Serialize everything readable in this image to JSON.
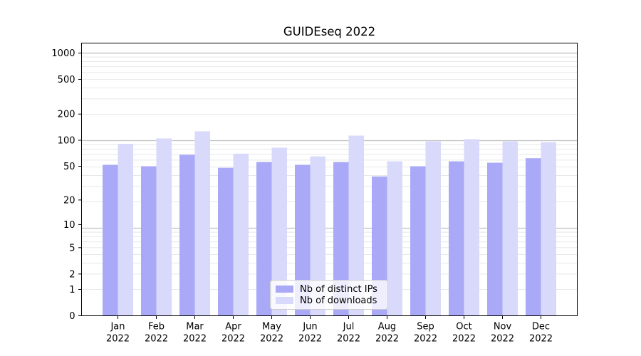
{
  "chart_data": {
    "type": "bar",
    "title": "GUIDEseq 2022",
    "categories": [
      "Jan",
      "Feb",
      "Mar",
      "Apr",
      "May",
      "Jun",
      "Jul",
      "Aug",
      "Sep",
      "Oct",
      "Nov",
      "Dec"
    ],
    "category_year": "2022",
    "series": [
      {
        "name": "Nb of distinct IPs",
        "color": "#a9a9f7",
        "values": [
          52,
          50,
          68,
          48,
          56,
          52,
          56,
          38,
          50,
          57,
          55,
          62
        ]
      },
      {
        "name": "Nb of downloads",
        "color": "#d9d9fb",
        "values": [
          91,
          105,
          127,
          70,
          82,
          65,
          113,
          57,
          97,
          103,
          97,
          95
        ]
      }
    ],
    "xlabel": "",
    "ylabel": "",
    "yscale": "log1p",
    "ylim": [
      0,
      1300
    ],
    "yticks": [
      0,
      1,
      2,
      5,
      10,
      20,
      50,
      100,
      200,
      500,
      1000
    ],
    "grid": true,
    "legend_position": "lower center",
    "colors": {
      "major_gridline": "#c0c0c0",
      "minor_gridline": "#e8e8e8",
      "spine": "#000000",
      "text": "#000000"
    }
  }
}
